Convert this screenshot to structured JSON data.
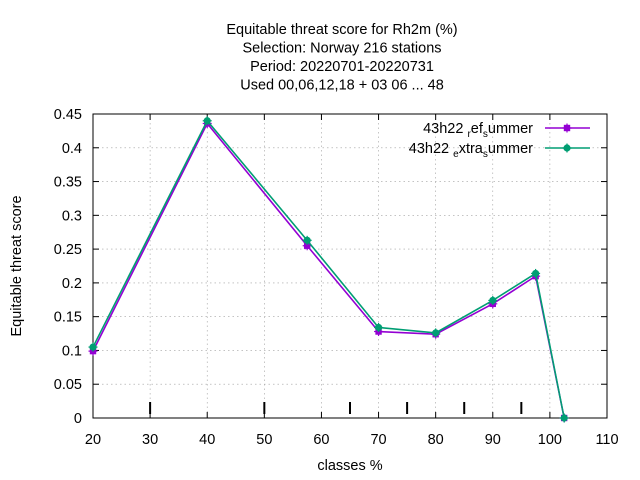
{
  "chart_data": {
    "type": "line",
    "title_lines": [
      "Equitable threat score  for Rh2m (%)",
      "Selection: Norway    216 stations",
      "Period: 20220701-20220731",
      "Used  00,06,12,18  + 03 06 ... 48"
    ],
    "xlabel": "classes %",
    "ylabel": "Equitable threat score",
    "xlim": [
      20,
      110
    ],
    "ylim": [
      0,
      0.45
    ],
    "x_ticks": [
      20,
      30,
      40,
      50,
      60,
      70,
      80,
      90,
      100,
      110
    ],
    "y_ticks": [
      0,
      0.05,
      0.1,
      0.15,
      0.2,
      0.25,
      0.3,
      0.35,
      0.4,
      0.45
    ],
    "x_tick_labels": [
      "20",
      "30",
      "40",
      "50",
      "60",
      "70",
      "80",
      "90",
      "100",
      "110"
    ],
    "y_tick_labels": [
      "0",
      "0.05",
      "0.1",
      "0.15",
      "0.2",
      "0.25",
      "0.3",
      "0.35",
      "0.4",
      "0.45"
    ],
    "class_markers": [
      30,
      50,
      65,
      75,
      85,
      95
    ],
    "grid": true,
    "legend_position": "top-right",
    "series": [
      {
        "name_main": "43h22",
        "name_parts": [
          [
            "r",
            "ef"
          ],
          [
            "s",
            "ummer"
          ]
        ],
        "color": "#9400d3",
        "marker": "plus-square",
        "x": [
          20,
          40,
          57.5,
          70,
          80,
          90,
          97.5,
          102.5
        ],
        "y": [
          0.099,
          0.436,
          0.255,
          0.128,
          0.124,
          0.169,
          0.21,
          0.0
        ]
      },
      {
        "name_main": "43h22",
        "name_parts": [
          [
            "e",
            "xtra"
          ],
          [
            "s",
            "ummer"
          ]
        ],
        "color": "#009e73",
        "marker": "plus-circle",
        "x": [
          20,
          40,
          57.5,
          70,
          80,
          90,
          97.5,
          102.5
        ],
        "y": [
          0.105,
          0.44,
          0.263,
          0.134,
          0.126,
          0.174,
          0.214,
          0.0
        ]
      }
    ]
  }
}
